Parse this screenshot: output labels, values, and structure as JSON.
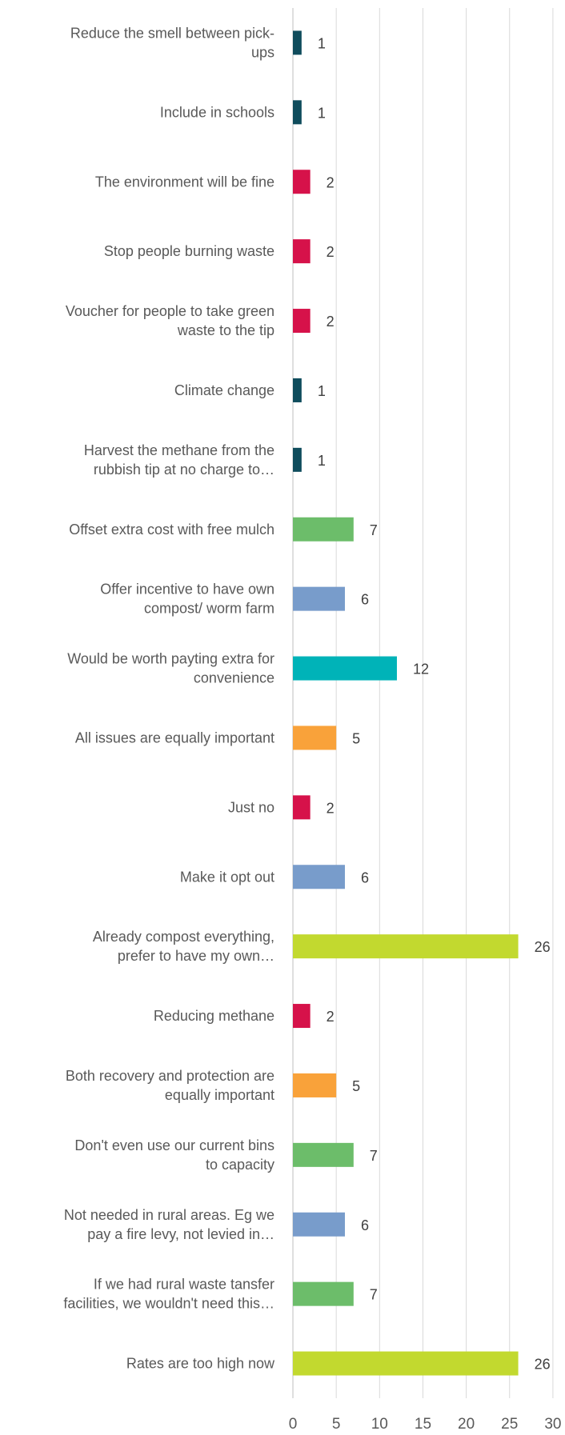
{
  "chart_data": {
    "type": "bar",
    "orientation": "horizontal",
    "title": "",
    "xlabel": "",
    "ylabel": "",
    "xlim": [
      0,
      30
    ],
    "x_ticks": [
      0,
      5,
      10,
      15,
      20,
      25,
      30
    ],
    "grid": "vertical",
    "legend": "none",
    "categories": [
      "Reduce the smell between pick-ups",
      "Include in schools",
      "The environment will be fine",
      "Stop people burning waste",
      "Voucher for people to take green waste to the tip",
      "Climate change",
      "Harvest the methane from the rubbish tip at no charge to…",
      "Offset extra cost with free mulch",
      "Offer incentive to have own compost/ worm farm",
      "Would be worth payting extra for convenience",
      "All issues are equally important",
      "Just no",
      "Make it opt out",
      "Already compost everything, prefer to have my own…",
      "Reducing methane",
      "Both recovery and protection are equally important",
      "Don't even use our current bins to capacity",
      "Not needed in rural areas. Eg we pay a fire levy, not levied in…",
      "If we had rural waste tansfer facilities, we wouldn't need this…",
      "Rates are too high now"
    ],
    "label_lines": [
      [
        "Reduce the smell between pick-",
        "ups"
      ],
      [
        "Include in schools"
      ],
      [
        "The environment will be fine"
      ],
      [
        "Stop people burning waste"
      ],
      [
        "Voucher for people to take green",
        "waste to the tip"
      ],
      [
        "Climate change"
      ],
      [
        "Harvest the methane from the",
        "rubbish tip at no charge to…"
      ],
      [
        "Offset extra cost with free mulch"
      ],
      [
        "Offer incentive to have own",
        "compost/ worm farm"
      ],
      [
        "Would be worth payting extra for",
        "convenience"
      ],
      [
        "All issues are equally important"
      ],
      [
        "Just no"
      ],
      [
        "Make it opt out"
      ],
      [
        "Already compost everything,",
        "prefer to have my own…"
      ],
      [
        "Reducing methane"
      ],
      [
        "Both recovery and protection are",
        "equally important"
      ],
      [
        "Don't even use our current bins",
        "to capacity"
      ],
      [
        "Not needed in rural areas. Eg we",
        "pay a fire levy, not levied in…"
      ],
      [
        "If we had rural waste tansfer",
        "facilities, we wouldn't need this…"
      ],
      [
        "Rates are too high now"
      ]
    ],
    "values": [
      1,
      1,
      2,
      2,
      2,
      1,
      1,
      7,
      6,
      12,
      5,
      2,
      6,
      26,
      2,
      5,
      7,
      6,
      7,
      26
    ],
    "colors": [
      "#0f4c5c",
      "#0f4c5c",
      "#d6124a",
      "#d6124a",
      "#d6124a",
      "#0f4c5c",
      "#0f4c5c",
      "#6cbd6a",
      "#789ccb",
      "#00b3b8",
      "#f9a23a",
      "#d6124a",
      "#789ccb",
      "#c2d92f",
      "#d6124a",
      "#f9a23a",
      "#6cbd6a",
      "#789ccb",
      "#6cbd6a",
      "#c2d92f"
    ]
  }
}
